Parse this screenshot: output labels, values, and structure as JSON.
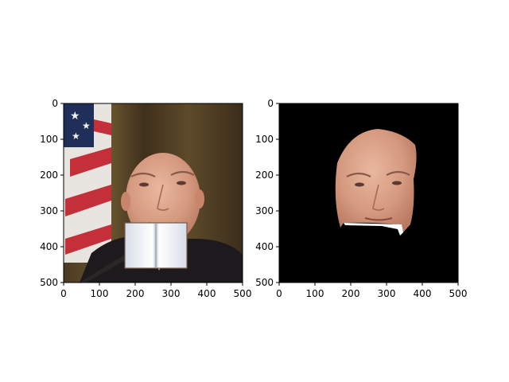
{
  "figure": {
    "background": "#ffffff"
  },
  "chart_data": [
    {
      "type": "image",
      "title": "",
      "xlabel": "",
      "ylabel": "",
      "xlim": [
        0,
        500
      ],
      "ylim": [
        500,
        0
      ],
      "x_ticks": [
        0,
        100,
        200,
        300,
        400,
        500
      ],
      "y_ticks": [
        0,
        100,
        200,
        300,
        400,
        500
      ],
      "x_tick_labels": [
        "0",
        "100",
        "200",
        "300",
        "400",
        "500"
      ],
      "y_tick_labels": [
        "0",
        "100",
        "200",
        "300",
        "400",
        "500"
      ],
      "content": "photo-with-book-occluder",
      "background_color": "#3b2f1f",
      "occluder": {
        "shape": "open-book",
        "x": [
          168,
          345
        ],
        "y": [
          335,
          460
        ]
      }
    },
    {
      "type": "image",
      "title": "",
      "xlabel": "",
      "ylabel": "",
      "xlim": [
        0,
        500
      ],
      "ylim": [
        500,
        0
      ],
      "x_ticks": [
        0,
        100,
        200,
        300,
        400,
        500
      ],
      "y_ticks": [
        0,
        100,
        200,
        300,
        400,
        500
      ],
      "x_tick_labels": [
        "0",
        "100",
        "200",
        "300",
        "400",
        "500"
      ],
      "y_tick_labels": [
        "0",
        "100",
        "200",
        "300",
        "400",
        "500"
      ],
      "content": "segmented-face-mask",
      "background_color": "#000000"
    }
  ]
}
